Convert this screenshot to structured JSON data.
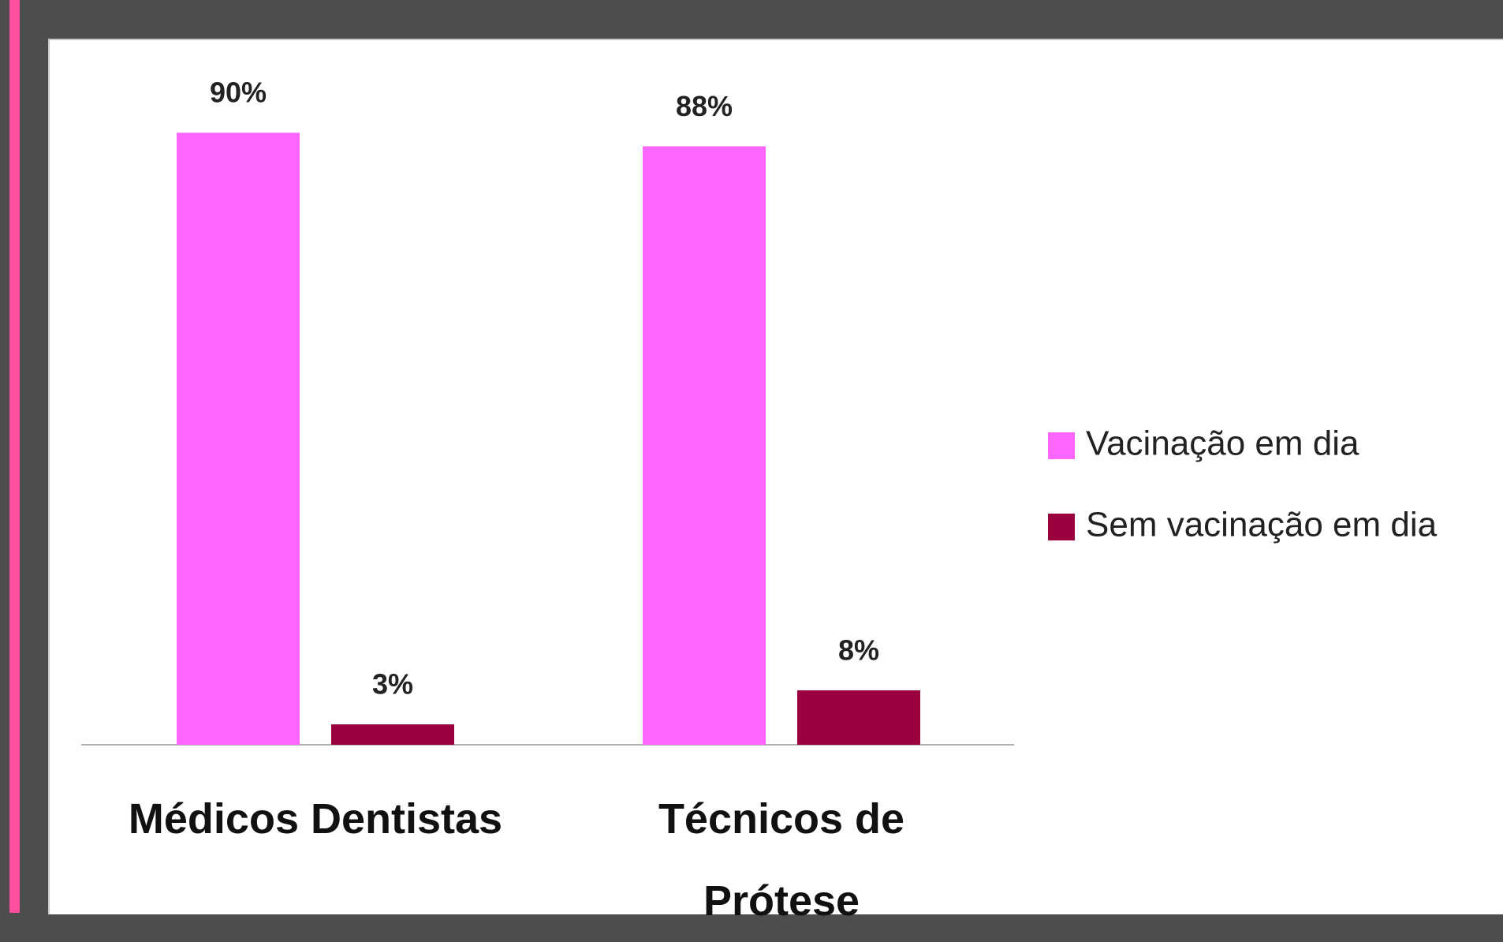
{
  "chart_data": {
    "type": "bar",
    "categories": [
      "Médicos Dentistas",
      "Técnicos de Prótese"
    ],
    "series": [
      {
        "name": "Vacinação em dia",
        "color": "#ff66ff",
        "values": [
          90,
          88
        ],
        "value_labels": [
          "90%",
          "88%"
        ]
      },
      {
        "name": "Sem vacinação em dia",
        "color": "#99003d",
        "values": [
          3,
          8
        ],
        "value_labels": [
          "3%",
          "8%"
        ]
      }
    ],
    "ylim": [
      0,
      100
    ],
    "legend": "right"
  }
}
